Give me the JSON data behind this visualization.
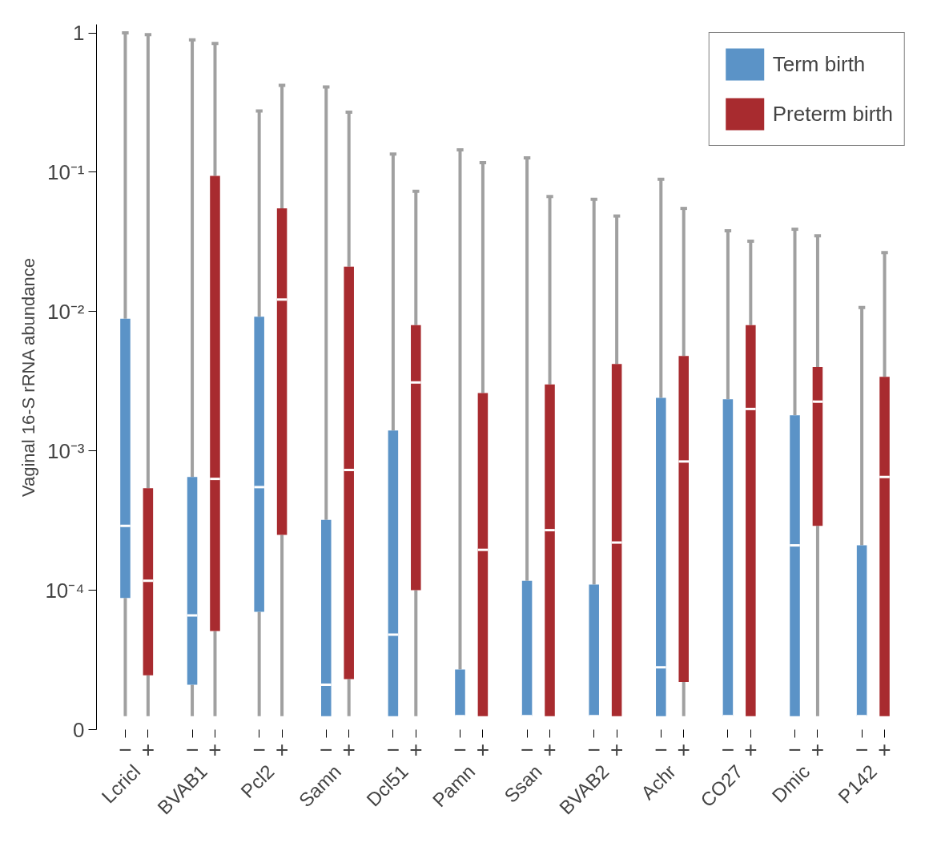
{
  "chart_data": {
    "type": "box",
    "ylabel": "Vaginal 16-S rRNA abundance",
    "log": true,
    "grid": false,
    "legend": "top right",
    "categories": [
      "Lcricl",
      "BVAB1",
      "Pcl2",
      "Samn",
      "Dcl51",
      "Pamn",
      "Ssan",
      "BVAB2",
      "Achr",
      "CO27",
      "Dmic",
      "P142"
    ],
    "ylim": [
      1e-05,
      1.15
    ],
    "yticks": [
      {
        "value": 1e-05,
        "label": "0"
      },
      {
        "value": 0.0001,
        "label": "10⁻⁴"
      },
      {
        "value": 0.001,
        "label": "10⁻³"
      },
      {
        "value": 0.01,
        "label": "10⁻²"
      },
      {
        "value": 0.1,
        "label": "10⁻¹"
      },
      1
    ],
    "series": [
      {
        "name": "Term birth",
        "color": "#5b93c7",
        "boxes": [
          {
            "low": 1.25e-05,
            "q1": 8.8e-05,
            "median": 0.00029,
            "q3": 0.0089,
            "high": 1
          },
          {
            "low": 1.25e-05,
            "q1": 2.1e-05,
            "median": 6.6e-05,
            "q3": 0.00065,
            "high": 0.89
          },
          {
            "low": 1.25e-05,
            "q1": 7e-05,
            "median": 0.00055,
            "q3": 0.0092,
            "high": 0.275
          },
          {
            "low": 1.25e-05,
            "q1": 1.25e-05,
            "median": 2.1e-05,
            "q3": 0.00032,
            "high": 0.41
          },
          {
            "low": 1.25e-05,
            "q1": 1.25e-05,
            "median": 4.8e-05,
            "q3": 0.0014,
            "high": 0.135
          },
          {
            "low": 1.25e-05,
            "q1": 1.25e-05,
            "median": 1.25e-05,
            "q3": 2.7e-05,
            "high": 0.145
          },
          {
            "low": 1.25e-05,
            "q1": 1.25e-05,
            "median": 1.25e-05,
            "q3": 0.000117,
            "high": 0.127
          },
          {
            "low": 1.25e-05,
            "q1": 1.25e-05,
            "median": 1.25e-05,
            "q3": 0.00011,
            "high": 0.064
          },
          {
            "low": 1.25e-05,
            "q1": 1.25e-05,
            "median": 2.8e-05,
            "q3": 0.0024,
            "high": 0.089
          },
          {
            "low": 1.25e-05,
            "q1": 1.25e-05,
            "median": 1.25e-05,
            "q3": 0.00235,
            "high": 0.038
          },
          {
            "low": 1.25e-05,
            "q1": 1.25e-05,
            "median": 0.00021,
            "q3": 0.0018,
            "high": 0.039
          },
          {
            "low": 1.25e-05,
            "q1": 1.25e-05,
            "median": 1.25e-05,
            "q3": 0.00021,
            "high": 0.0107
          }
        ]
      },
      {
        "name": "Preterm birth",
        "color": "#a82b2f",
        "boxes": [
          {
            "low": 1.25e-05,
            "q1": 2.45e-05,
            "median": 0.000117,
            "q3": 0.00054,
            "high": 0.97
          },
          {
            "low": 1.25e-05,
            "q1": 5.1e-05,
            "median": 0.00063,
            "q3": 0.094,
            "high": 0.84
          },
          {
            "low": 1.25e-05,
            "q1": 0.00025,
            "median": 0.0122,
            "q3": 0.055,
            "high": 0.42
          },
          {
            "low": 1.25e-05,
            "q1": 2.3e-05,
            "median": 0.00073,
            "q3": 0.021,
            "high": 0.27
          },
          {
            "low": 1.25e-05,
            "q1": 0.0001,
            "median": 0.0031,
            "q3": 0.008,
            "high": 0.073
          },
          {
            "low": 1.25e-05,
            "q1": 1.25e-05,
            "median": 0.000195,
            "q3": 0.0026,
            "high": 0.117
          },
          {
            "low": 1.25e-05,
            "q1": 1.25e-05,
            "median": 0.00027,
            "q3": 0.003,
            "high": 0.067
          },
          {
            "low": 1.25e-05,
            "q1": 1.25e-05,
            "median": 0.00022,
            "q3": 0.0042,
            "high": 0.0485
          },
          {
            "low": 1.25e-05,
            "q1": 2.2e-05,
            "median": 0.00084,
            "q3": 0.0048,
            "high": 0.055
          },
          {
            "low": 1.25e-05,
            "q1": 1.25e-05,
            "median": 0.002,
            "q3": 0.008,
            "high": 0.032
          },
          {
            "low": 1.25e-05,
            "q1": 0.00029,
            "median": 0.00226,
            "q3": 0.004,
            "high": 0.035
          },
          {
            "low": 1.25e-05,
            "q1": 1.25e-05,
            "median": 0.00065,
            "q3": 0.0034,
            "high": 0.0265
          }
        ]
      }
    ],
    "annotations": [
      "−",
      "+",
      "−",
      "+",
      "−",
      "+",
      "−",
      "+",
      "−",
      "+",
      "−",
      "+",
      "−",
      "+",
      "−",
      "+",
      "−",
      "+",
      "−",
      "+",
      "−",
      "+",
      "−",
      "+"
    ]
  }
}
